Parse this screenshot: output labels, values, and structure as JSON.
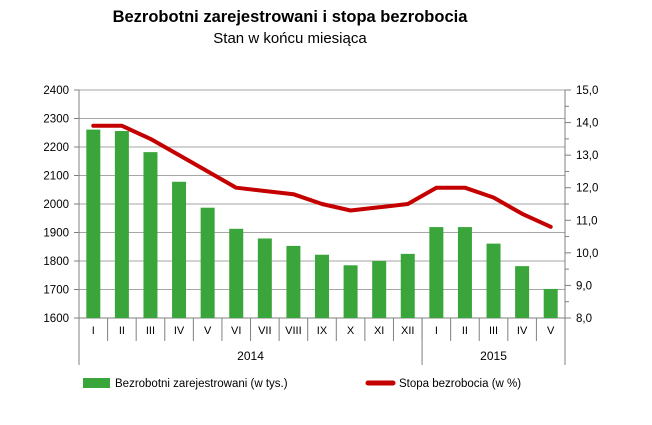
{
  "header": {
    "title": "Bezrobotni zarejestrowani i stopa bezrobocia",
    "subtitle": "Stan w końcu miesiąca"
  },
  "chart_data": {
    "type": "bar",
    "title": "Bezrobotni zarejestrowani i stopa bezrobocia",
    "subtitle": "Stan w końcu miesiąca",
    "categories": [
      "I",
      "II",
      "III",
      "IV",
      "V",
      "VI",
      "VII",
      "VIII",
      "IX",
      "X",
      "XI",
      "XII",
      "I",
      "II",
      "III",
      "IV",
      "V"
    ],
    "year_groups": [
      {
        "label": "2014",
        "span": 12
      },
      {
        "label": "2015",
        "span": 5
      }
    ],
    "series": [
      {
        "name": "Bezrobotni zarejestrowani  (w tys.)",
        "type": "bar",
        "axis": "left",
        "color": "#3aa53a",
        "values": [
          2261,
          2256,
          2182,
          2078,
          1987,
          1913,
          1879,
          1853,
          1822,
          1785,
          1800,
          1825,
          1919,
          1919,
          1861,
          1782,
          1702
        ]
      },
      {
        "name": "Stopa bezrobocia  (w %)",
        "type": "line",
        "axis": "right",
        "color": "#c40000",
        "values": [
          13.9,
          13.9,
          13.5,
          13.0,
          12.5,
          12.0,
          11.9,
          11.8,
          11.5,
          11.3,
          11.4,
          11.5,
          12.0,
          12.0,
          11.7,
          11.2,
          10.8
        ]
      }
    ],
    "left_axis": {
      "min": 1600,
      "max": 2400,
      "step": 100
    },
    "right_axis": {
      "min": 8.0,
      "max": 15.0,
      "step": 1.0,
      "minor_step": 0.5,
      "decimal_comma": true
    },
    "grid": true,
    "legend_position": "bottom"
  },
  "colors": {
    "bar": "#3aa53a",
    "line": "#c40000",
    "gridline": "#a6a6a6",
    "axis": "#808080",
    "text": "#000000",
    "background": "#ffffff"
  }
}
